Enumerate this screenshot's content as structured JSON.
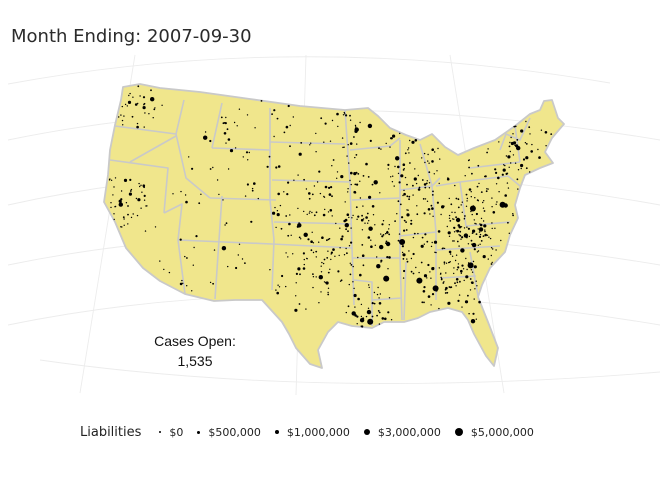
{
  "title": "Month Ending: 2007-09-30",
  "cases": {
    "label": "Cases Open:",
    "value": "1,535"
  },
  "map": {
    "fill_color": "#F0E68C",
    "border_color": "#C9C9C9",
    "point_color": "#000000",
    "graticule_color": "#ECECEC",
    "region": "Contiguous United States"
  },
  "legend": {
    "title": "Liabilities",
    "items": [
      {
        "label": "$0",
        "value": 0
      },
      {
        "label": "$500,000",
        "value": 500000
      },
      {
        "label": "$1,000,000",
        "value": 1000000
      },
      {
        "label": "$3,000,000",
        "value": 3000000
      },
      {
        "label": "$5,000,000",
        "value": 5000000
      }
    ]
  }
}
